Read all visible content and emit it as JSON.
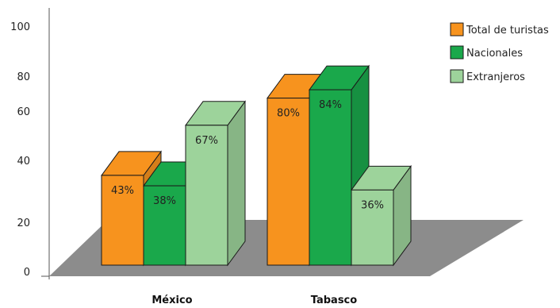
{
  "chart_data": {
    "type": "bar",
    "title": "",
    "xlabel": "",
    "ylabel": "",
    "categories": [
      "México",
      "Tabasco"
    ],
    "series": [
      {
        "name": "Total de turistas",
        "values": [
          43,
          80
        ],
        "labels": [
          "43%",
          "80%"
        ]
      },
      {
        "name": "Nacionales",
        "values": [
          38,
          84
        ],
        "labels": [
          "38%",
          "84%"
        ]
      },
      {
        "name": "Extranjeros",
        "values": [
          67,
          36
        ],
        "labels": [
          "67%",
          "36%"
        ]
      }
    ],
    "y_ticks": [
      "0",
      "20",
      "40",
      "60",
      "80",
      "100"
    ],
    "ylim": [
      0,
      100
    ],
    "grid": false,
    "legend_position": "top-right",
    "style": "3d",
    "colors": {
      "series": [
        "#f7931e",
        "#1aa84b",
        "#9dd39b"
      ],
      "floor": "#8c8c8c",
      "axis": "#555555",
      "edge": "#1a1a1a"
    }
  }
}
